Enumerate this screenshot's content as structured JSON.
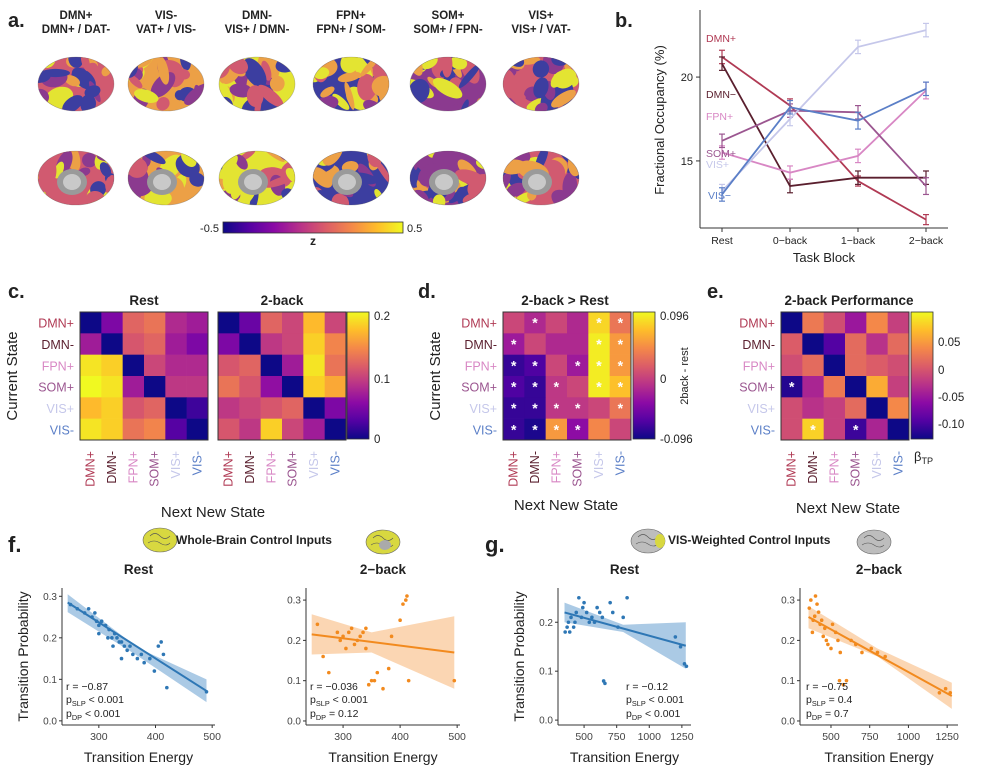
{
  "panel_labels": [
    "a.",
    "b.",
    "c.",
    "d.",
    "e.",
    "f.",
    "g."
  ],
  "panel_a": {
    "headers": [
      [
        "DMN+",
        "DMN+ / DAT-"
      ],
      [
        "VIS-",
        "VAT+ / VIS-"
      ],
      [
        "DMN-",
        "VIS+ / DMN-"
      ],
      [
        "FPN+",
        "FPN+ / SOM-"
      ],
      [
        "SOM+",
        "SOM+ / FPN-"
      ],
      [
        "VIS+",
        "VIS+ / VAT-"
      ]
    ],
    "colorbar": {
      "min": "-0.5",
      "max": "0.5",
      "label": "z"
    }
  },
  "states": [
    "DMN+",
    "DMN-",
    "FPN+",
    "SOM+",
    "VIS+",
    "VIS-"
  ],
  "state_colors": {
    "DMN+": "#b03a54",
    "DMN-": "#5a1f2e",
    "FPN+": "#d887c4",
    "SOM+": "#9b5690",
    "VIS+": "#c5c7ea",
    "VIS-": "#5b7fc7"
  },
  "chart_data": [
    {
      "id": "b",
      "type": "line",
      "title": "",
      "xlabel": "Task Block",
      "ylabel": "Fractional Occupancy (%)",
      "categories": [
        "Rest",
        "0−back",
        "1−back",
        "2−back"
      ],
      "ylim": [
        11,
        24
      ],
      "yticks": [
        15,
        20
      ],
      "series": [
        {
          "name": "DMN+",
          "values": [
            21.2,
            18.3,
            13.8,
            11.5
          ],
          "err": [
            0.4,
            0.4,
            0.3,
            0.3
          ]
        },
        {
          "name": "DMN−",
          "values": [
            20.8,
            13.5,
            14.0,
            14.0
          ],
          "err": [
            0.4,
            0.4,
            0.4,
            0.4
          ]
        },
        {
          "name": "FPN+",
          "values": [
            15.5,
            14.3,
            15.3,
            19.2
          ],
          "err": [
            0.4,
            0.4,
            0.4,
            0.5
          ]
        },
        {
          "name": "SOM+",
          "values": [
            16.2,
            18.0,
            17.9,
            13.5
          ],
          "err": [
            0.4,
            0.4,
            0.4,
            0.5
          ]
        },
        {
          "name": "VIS+",
          "values": [
            13.2,
            17.5,
            21.8,
            22.8
          ],
          "err": [
            0.4,
            0.4,
            0.4,
            0.4
          ]
        },
        {
          "name": "VIS−",
          "values": [
            13.0,
            18.2,
            17.4,
            19.3
          ],
          "err": [
            0.4,
            0.4,
            0.5,
            0.4
          ]
        }
      ]
    },
    {
      "id": "c",
      "type": "heatmap",
      "ylabel": "Current State",
      "xlabel": "Next New State",
      "titles": [
        "Rest",
        "2-back"
      ],
      "colorbar": {
        "ticks": [
          "0.2",
          "0.1",
          "0"
        ],
        "range": [
          0,
          0.2
        ]
      },
      "matrices": [
        [
          [
            0.0,
            0.05,
            0.12,
            0.13,
            0.08,
            0.07
          ],
          [
            0.07,
            0.0,
            0.11,
            0.12,
            0.07,
            0.05
          ],
          [
            0.19,
            0.18,
            0.0,
            0.1,
            0.08,
            0.08
          ],
          [
            0.2,
            0.19,
            0.07,
            0.0,
            0.09,
            0.09
          ],
          [
            0.17,
            0.18,
            0.11,
            0.12,
            0.0,
            0.02
          ],
          [
            0.19,
            0.18,
            0.13,
            0.14,
            0.03,
            0.0
          ]
        ],
        [
          [
            0.0,
            0.04,
            0.12,
            0.1,
            0.17,
            0.1
          ],
          [
            0.05,
            0.0,
            0.09,
            0.1,
            0.18,
            0.14
          ],
          [
            0.11,
            0.12,
            0.0,
            0.07,
            0.19,
            0.13
          ],
          [
            0.13,
            0.11,
            0.06,
            0.0,
            0.18,
            0.16
          ],
          [
            0.09,
            0.1,
            0.11,
            0.12,
            0.0,
            0.05
          ],
          [
            0.11,
            0.09,
            0.18,
            0.1,
            0.07,
            0.0
          ]
        ]
      ]
    },
    {
      "id": "d",
      "type": "heatmap",
      "title": "2-back > Rest",
      "xlabel": "Next New State",
      "colorbar": {
        "ticks": [
          "0.096",
          "0",
          "-0.096"
        ],
        "label": "2back - rest",
        "range": [
          -0.096,
          0.096
        ]
      },
      "matrix": [
        [
          0.0,
          -0.02,
          0.0,
          -0.02,
          0.08,
          0.03
        ],
        [
          -0.03,
          0.0,
          -0.02,
          -0.02,
          0.09,
          0.05
        ],
        [
          -0.08,
          -0.07,
          0.0,
          -0.03,
          0.09,
          0.05
        ],
        [
          -0.07,
          -0.08,
          -0.01,
          0.0,
          0.09,
          0.07
        ],
        [
          -0.08,
          -0.08,
          -0.01,
          -0.01,
          0.0,
          0.03
        ],
        [
          -0.08,
          -0.09,
          0.05,
          -0.04,
          0.04,
          0.0
        ]
      ],
      "stars": [
        [
          false,
          true,
          false,
          false,
          true,
          true
        ],
        [
          true,
          false,
          false,
          false,
          true,
          true
        ],
        [
          true,
          true,
          false,
          true,
          true,
          true
        ],
        [
          true,
          true,
          true,
          false,
          true,
          true
        ],
        [
          true,
          true,
          true,
          true,
          false,
          true
        ],
        [
          true,
          true,
          true,
          true,
          false,
          false
        ]
      ]
    },
    {
      "id": "e",
      "type": "heatmap",
      "title": "2-back Performance",
      "xlabel": "Next New State",
      "colorbar": {
        "ticks": [
          "0.05",
          "0",
          "-0.05",
          "-0.10"
        ],
        "label": "β",
        "label_sub": "TP",
        "range": [
          -0.13,
          0.08
        ]
      },
      "matrix": [
        [
          -0.13,
          0.01,
          -0.02,
          -0.06,
          0.02,
          -0.03
        ],
        [
          -0.01,
          -0.13,
          -0.1,
          0.0,
          -0.04,
          0.0
        ],
        [
          -0.02,
          0.0,
          -0.13,
          0.0,
          -0.01,
          -0.02
        ],
        [
          -0.12,
          -0.05,
          0.01,
          -0.13,
          0.04,
          -0.03
        ],
        [
          -0.02,
          -0.04,
          -0.03,
          0.0,
          -0.13,
          0.02
        ],
        [
          -0.02,
          0.06,
          -0.03,
          -0.11,
          -0.05,
          -0.13
        ]
      ],
      "stars": [
        [
          false,
          false,
          false,
          false,
          false,
          false
        ],
        [
          false,
          false,
          false,
          false,
          false,
          false
        ],
        [
          false,
          false,
          false,
          false,
          false,
          false
        ],
        [
          true,
          false,
          false,
          false,
          false,
          false
        ],
        [
          false,
          false,
          false,
          false,
          false,
          false
        ],
        [
          false,
          true,
          false,
          true,
          false,
          false
        ]
      ]
    },
    {
      "id": "f-rest",
      "type": "scatter",
      "title": "Rest",
      "xlabel": "Transition Energy",
      "ylabel": "Transition Probability",
      "xlim": [
        235,
        505
      ],
      "ylim": [
        -0.01,
        0.32
      ],
      "xticks": [
        300,
        400,
        500
      ],
      "yticks": [
        0.0,
        0.1,
        0.2,
        0.3
      ],
      "ytick_labels": [
        "0.0",
        "0.1",
        "0.2",
        "0.3"
      ],
      "color": "#2e77b5",
      "band": "#8fb8dc",
      "points": [
        [
          250,
          0.28
        ],
        [
          262,
          0.27
        ],
        [
          275,
          0.26
        ],
        [
          282,
          0.27
        ],
        [
          288,
          0.25
        ],
        [
          293,
          0.26
        ],
        [
          296,
          0.24
        ],
        [
          300,
          0.23
        ],
        [
          305,
          0.24
        ],
        [
          312,
          0.23
        ],
        [
          318,
          0.22
        ],
        [
          323,
          0.2
        ],
        [
          328,
          0.21
        ],
        [
          332,
          0.2
        ],
        [
          336,
          0.19
        ],
        [
          340,
          0.19
        ],
        [
          345,
          0.18
        ],
        [
          350,
          0.17
        ],
        [
          355,
          0.18
        ],
        [
          360,
          0.16
        ],
        [
          368,
          0.15
        ],
        [
          375,
          0.16
        ],
        [
          380,
          0.14
        ],
        [
          390,
          0.15
        ],
        [
          398,
          0.12
        ],
        [
          405,
          0.18
        ],
        [
          410,
          0.19
        ],
        [
          414,
          0.16
        ],
        [
          420,
          0.08
        ],
        [
          490,
          0.07
        ],
        [
          300,
          0.21
        ],
        [
          316,
          0.2
        ],
        [
          325,
          0.18
        ],
        [
          340,
          0.15
        ]
      ],
      "line": [
        [
          245,
          0.285
        ],
        [
          490,
          0.072
        ]
      ],
      "band_lower": [
        [
          245,
          0.262
        ],
        [
          370,
          0.155
        ],
        [
          490,
          0.045
        ]
      ],
      "band_upper": [
        [
          245,
          0.305
        ],
        [
          370,
          0.175
        ],
        [
          490,
          0.1
        ]
      ],
      "stats": {
        "r": "r = −0.87",
        "p1": "p",
        "p1_sub": "SLP",
        "p1_val": " < 0.001",
        "p2": "p",
        "p2_sub": "DP",
        "p2_val": " < 0.001"
      }
    },
    {
      "id": "f-2back",
      "type": "scatter",
      "title": "2−back",
      "xlabel": "Transition Energy",
      "xlim": [
        235,
        505
      ],
      "ylim": [
        -0.01,
        0.33
      ],
      "xticks": [
        300,
        400,
        500
      ],
      "yticks": [
        0.0,
        0.1,
        0.2,
        0.3
      ],
      "ytick_labels": [
        "0.0",
        "0.1",
        "0.2",
        "0.3"
      ],
      "color": "#f28a1e",
      "band": "#f9c89a",
      "points": [
        [
          255,
          0.24
        ],
        [
          265,
          0.16
        ],
        [
          275,
          0.12
        ],
        [
          290,
          0.22
        ],
        [
          295,
          0.2
        ],
        [
          300,
          0.21
        ],
        [
          305,
          0.18
        ],
        [
          310,
          0.22
        ],
        [
          315,
          0.23
        ],
        [
          320,
          0.19
        ],
        [
          325,
          0.2
        ],
        [
          330,
          0.21
        ],
        [
          335,
          0.22
        ],
        [
          340,
          0.18
        ],
        [
          345,
          0.09
        ],
        [
          350,
          0.1
        ],
        [
          355,
          0.1
        ],
        [
          360,
          0.12
        ],
        [
          370,
          0.08
        ],
        [
          380,
          0.13
        ],
        [
          385,
          0.21
        ],
        [
          400,
          0.25
        ],
        [
          405,
          0.29
        ],
        [
          410,
          0.3
        ],
        [
          412,
          0.31
        ],
        [
          415,
          0.1
        ],
        [
          495,
          0.1
        ],
        [
          340,
          0.23
        ]
      ],
      "line": [
        [
          245,
          0.215
        ],
        [
          495,
          0.17
        ]
      ],
      "band_lower": [
        [
          245,
          0.165
        ],
        [
          350,
          0.17
        ],
        [
          495,
          0.08
        ]
      ],
      "band_upper": [
        [
          245,
          0.265
        ],
        [
          350,
          0.22
        ],
        [
          495,
          0.26
        ]
      ],
      "stats": {
        "r": "r = −0.036",
        "p1": "p",
        "p1_sub": "SLP",
        "p1_val": " < 0.001",
        "p2": "p",
        "p2_sub": "DP",
        "p2_val": " = 0.12"
      }
    },
    {
      "id": "g-rest",
      "type": "scatter",
      "title": "Rest",
      "xlabel": "Transition Energy",
      "ylabel": "Transition Probability",
      "xlim": [
        300,
        1320
      ],
      "ylim": [
        -0.01,
        0.27
      ],
      "xticks": [
        500,
        750,
        1000,
        1250
      ],
      "yticks": [
        0.0,
        0.1,
        0.2
      ],
      "ytick_labels": [
        "0.0",
        "0.1",
        "0.2"
      ],
      "color": "#2e77b5",
      "band": "#8fb8dc",
      "points": [
        [
          355,
          0.18
        ],
        [
          370,
          0.19
        ],
        [
          380,
          0.2
        ],
        [
          390,
          0.18
        ],
        [
          400,
          0.21
        ],
        [
          420,
          0.19
        ],
        [
          430,
          0.2
        ],
        [
          440,
          0.22
        ],
        [
          460,
          0.25
        ],
        [
          480,
          0.21
        ],
        [
          490,
          0.23
        ],
        [
          500,
          0.24
        ],
        [
          520,
          0.22
        ],
        [
          540,
          0.2
        ],
        [
          560,
          0.21
        ],
        [
          580,
          0.2
        ],
        [
          600,
          0.23
        ],
        [
          620,
          0.22
        ],
        [
          640,
          0.21
        ],
        [
          650,
          0.08
        ],
        [
          660,
          0.075
        ],
        [
          700,
          0.24
        ],
        [
          720,
          0.22
        ],
        [
          760,
          0.19
        ],
        [
          800,
          0.21
        ],
        [
          830,
          0.25
        ],
        [
          1200,
          0.17
        ],
        [
          1240,
          0.15
        ],
        [
          1270,
          0.115
        ],
        [
          1285,
          0.11
        ]
      ],
      "line": [
        [
          350,
          0.22
        ],
        [
          1280,
          0.152
        ]
      ],
      "band_lower": [
        [
          350,
          0.2
        ],
        [
          800,
          0.18
        ],
        [
          1280,
          0.105
        ]
      ],
      "band_upper": [
        [
          350,
          0.24
        ],
        [
          800,
          0.195
        ],
        [
          1280,
          0.2
        ]
      ],
      "stats": {
        "r": "r = −0.12",
        "p1": "p",
        "p1_sub": "SLP",
        "p1_val": " < 0.001",
        "p2": "p",
        "p2_sub": "DP",
        "p2_val": " < 0.001"
      }
    },
    {
      "id": "g-2back",
      "type": "scatter",
      "title": "2−back",
      "xlabel": "Transition Energy",
      "xlim": [
        300,
        1320
      ],
      "ylim": [
        -0.01,
        0.33
      ],
      "xticks": [
        500,
        750,
        1000,
        1250
      ],
      "yticks": [
        0.0,
        0.1,
        0.2,
        0.3
      ],
      "ytick_labels": [
        "0.0",
        "0.1",
        "0.2",
        "0.3"
      ],
      "color": "#f28a1e",
      "band": "#f9c89a",
      "points": [
        [
          360,
          0.28
        ],
        [
          370,
          0.3
        ],
        [
          385,
          0.25
        ],
        [
          395,
          0.26
        ],
        [
          400,
          0.31
        ],
        [
          410,
          0.29
        ],
        [
          420,
          0.27
        ],
        [
          430,
          0.24
        ],
        [
          440,
          0.25
        ],
        [
          450,
          0.21
        ],
        [
          460,
          0.23
        ],
        [
          470,
          0.2
        ],
        [
          480,
          0.19
        ],
        [
          500,
          0.18
        ],
        [
          510,
          0.24
        ],
        [
          530,
          0.22
        ],
        [
          545,
          0.2
        ],
        [
          560,
          0.17
        ],
        [
          580,
          0.09
        ],
        [
          600,
          0.1
        ],
        [
          630,
          0.2
        ],
        [
          660,
          0.19
        ],
        [
          700,
          0.17
        ],
        [
          760,
          0.18
        ],
        [
          800,
          0.17
        ],
        [
          850,
          0.16
        ],
        [
          1200,
          0.07
        ],
        [
          1240,
          0.08
        ],
        [
          1270,
          0.07
        ],
        [
          380,
          0.22
        ],
        [
          555,
          0.1
        ]
      ],
      "line": [
        [
          355,
          0.258
        ],
        [
          1280,
          0.062
        ]
      ],
      "band_lower": [
        [
          355,
          0.23
        ],
        [
          800,
          0.16
        ],
        [
          1280,
          0.03
        ]
      ],
      "band_upper": [
        [
          355,
          0.285
        ],
        [
          800,
          0.18
        ],
        [
          1280,
          0.095
        ]
      ],
      "stats": {
        "r": "r = −0.75",
        "p1": "p",
        "p1_sub": "SLP",
        "p1_val": " = 0.4",
        "p2": "p",
        "p2_sub": "DP",
        "p2_val": " = 0.7"
      }
    }
  ],
  "panel_f_header": "Whole-Brain Control Inputs",
  "panel_g_header": "VIS-Weighted Control Inputs",
  "plasma": [
    "#0d0887",
    "#5302a3",
    "#8b0aa5",
    "#b83289",
    "#db5c68",
    "#f48849",
    "#febd2a",
    "#f0f921"
  ],
  "brain_colors": [
    "#3c3ea0",
    "#8b3a8f",
    "#d15a70",
    "#eca046",
    "#e3e432"
  ]
}
